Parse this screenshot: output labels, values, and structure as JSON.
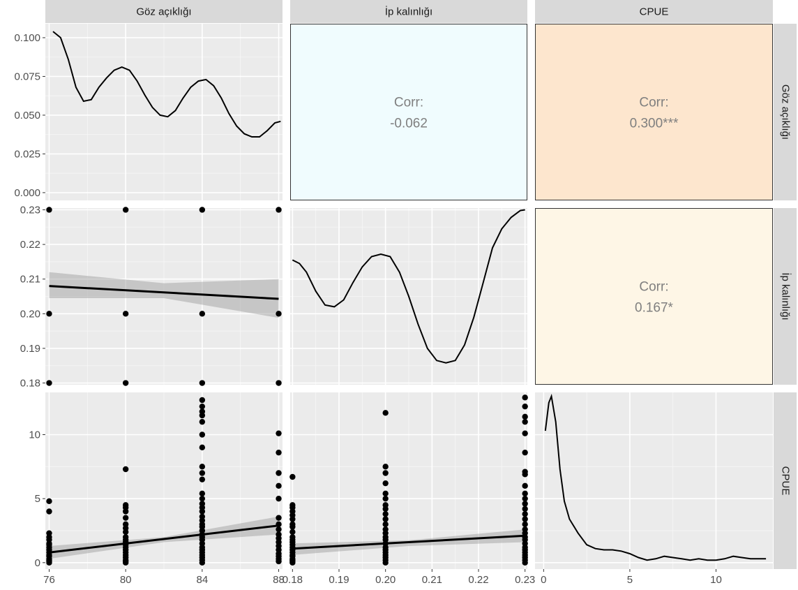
{
  "chart_data": {
    "type": "scatter",
    "variables": [
      "Göz açıklığı",
      "İp kalınlığı",
      "CPUE"
    ],
    "column_strips": [
      "Göz açıklığı",
      "İp kalınlığı",
      "CPUE"
    ],
    "row_strips": [
      "Göz açıklığı",
      "İp kalınlığı",
      "CPUE"
    ],
    "axes": {
      "goz": {
        "ticks": [
          76,
          80,
          84,
          88
        ],
        "tick_labels": [
          "76",
          "80",
          "84",
          "88"
        ],
        "range": [
          75.8,
          88.2
        ]
      },
      "ip": {
        "ticks": [
          0.18,
          0.19,
          0.2,
          0.21,
          0.22,
          0.23
        ],
        "tick_labels": [
          "0.18",
          "0.19",
          "0.20",
          "0.21",
          "0.22",
          "0.23"
        ],
        "range": [
          0.1795,
          0.2305
        ]
      },
      "cpue": {
        "ticks": [
          0,
          5,
          10
        ],
        "tick_labels": [
          "0",
          "5",
          "10"
        ],
        "range": [
          -0.5,
          13.3
        ]
      },
      "density_goz_y": {
        "ticks": [
          0,
          0.025,
          0.05,
          0.075,
          0.1
        ],
        "tick_labels": [
          "0.000",
          "0.025",
          "0.050",
          "0.075",
          "0.100"
        ],
        "range": [
          -0.005,
          0.109
        ]
      },
      "ip_y": {
        "ticks": [
          0.18,
          0.19,
          0.2,
          0.21,
          0.22,
          0.23
        ],
        "tick_labels": [
          "0.18",
          "0.19",
          "0.20",
          "0.21",
          "0.22",
          "0.23"
        ],
        "range": [
          0.1795,
          0.2305
        ]
      },
      "cpue_y": {
        "ticks": [
          0,
          5,
          10
        ],
        "tick_labels": [
          "0",
          "5",
          "10"
        ],
        "range": [
          -0.5,
          13.3
        ]
      }
    },
    "correlations": [
      {
        "row": 0,
        "col": 1,
        "label": "Corr:",
        "value": "-0.062",
        "fill": "#f0fcfe"
      },
      {
        "row": 0,
        "col": 2,
        "label": "Corr:",
        "value": "0.300***",
        "fill": "#fde6ce"
      },
      {
        "row": 1,
        "col": 2,
        "label": "Corr:",
        "value": "0.167*",
        "fill": "#fef6e6"
      }
    ],
    "density_goz": [
      [
        76.2,
        0.104
      ],
      [
        76.6,
        0.1
      ],
      [
        77,
        0.086
      ],
      [
        77.4,
        0.068
      ],
      [
        77.8,
        0.059
      ],
      [
        78.2,
        0.06
      ],
      [
        78.6,
        0.068
      ],
      [
        79,
        0.074
      ],
      [
        79.4,
        0.079
      ],
      [
        79.8,
        0.081
      ],
      [
        80.2,
        0.079
      ],
      [
        80.6,
        0.072
      ],
      [
        81,
        0.063
      ],
      [
        81.4,
        0.055
      ],
      [
        81.8,
        0.05
      ],
      [
        82.2,
        0.049
      ],
      [
        82.6,
        0.053
      ],
      [
        83,
        0.061
      ],
      [
        83.4,
        0.068
      ],
      [
        83.8,
        0.072
      ],
      [
        84.2,
        0.073
      ],
      [
        84.6,
        0.069
      ],
      [
        85,
        0.061
      ],
      [
        85.4,
        0.051
      ],
      [
        85.8,
        0.043
      ],
      [
        86.2,
        0.038
      ],
      [
        86.6,
        0.036
      ],
      [
        87,
        0.036
      ],
      [
        87.4,
        0.04
      ],
      [
        87.8,
        0.045
      ],
      [
        88.1,
        0.046
      ]
    ],
    "density_ip": [
      [
        0.18,
        0.2155
      ],
      [
        0.1815,
        0.2145
      ],
      [
        0.183,
        0.212
      ],
      [
        0.185,
        0.2065
      ],
      [
        0.187,
        0.2025
      ],
      [
        0.189,
        0.202
      ],
      [
        0.191,
        0.204
      ],
      [
        0.193,
        0.209
      ],
      [
        0.195,
        0.2135
      ],
      [
        0.197,
        0.2165
      ],
      [
        0.199,
        0.2172
      ],
      [
        0.201,
        0.2165
      ],
      [
        0.203,
        0.212
      ],
      [
        0.205,
        0.205
      ],
      [
        0.207,
        0.197
      ],
      [
        0.209,
        0.19
      ],
      [
        0.211,
        0.1865
      ],
      [
        0.213,
        0.1858
      ],
      [
        0.215,
        0.1865
      ],
      [
        0.217,
        0.191
      ],
      [
        0.219,
        0.199
      ],
      [
        0.221,
        0.209
      ],
      [
        0.223,
        0.219
      ],
      [
        0.225,
        0.2245
      ],
      [
        0.227,
        0.2278
      ],
      [
        0.229,
        0.2298
      ],
      [
        0.23,
        0.23
      ]
    ],
    "density_cpue": [
      [
        0.1,
        10.3
      ],
      [
        0.3,
        12.5
      ],
      [
        0.45,
        13
      ],
      [
        0.7,
        11
      ],
      [
        0.95,
        7.3
      ],
      [
        1.2,
        4.8
      ],
      [
        1.5,
        3.4
      ],
      [
        2,
        2.3
      ],
      [
        2.5,
        1.4
      ],
      [
        3,
        1.1
      ],
      [
        3.5,
        1
      ],
      [
        4,
        1
      ],
      [
        4.5,
        0.9
      ],
      [
        5,
        0.7
      ],
      [
        5.5,
        0.4
      ],
      [
        6,
        0.2
      ],
      [
        6.5,
        0.3
      ],
      [
        7,
        0.5
      ],
      [
        7.5,
        0.4
      ],
      [
        8,
        0.3
      ],
      [
        8.5,
        0.2
      ],
      [
        9,
        0.3
      ],
      [
        9.5,
        0.2
      ],
      [
        10,
        0.2
      ],
      [
        10.5,
        0.3
      ],
      [
        11,
        0.5
      ],
      [
        11.5,
        0.4
      ],
      [
        12,
        0.3
      ],
      [
        12.5,
        0.3
      ],
      [
        12.9,
        0.3
      ]
    ],
    "scatter_ip_vs_goz": {
      "points": [
        [
          76,
          0.23
        ],
        [
          80,
          0.23
        ],
        [
          84,
          0.23
        ],
        [
          88,
          0.23
        ],
        [
          76,
          0.2
        ],
        [
          80,
          0.2
        ],
        [
          84,
          0.2
        ],
        [
          88,
          0.2
        ],
        [
          76,
          0.18
        ],
        [
          80,
          0.18
        ],
        [
          84,
          0.18
        ],
        [
          88,
          0.18
        ]
      ],
      "fit": [
        [
          76,
          0.208
        ],
        [
          88,
          0.2043
        ]
      ],
      "band_upper": [
        [
          76,
          0.212
        ],
        [
          82,
          0.2088
        ],
        [
          88,
          0.21
        ]
      ],
      "band_lower": [
        [
          76,
          0.2045
        ],
        [
          82,
          0.2045
        ],
        [
          88,
          0.1988
        ]
      ]
    },
    "scatter_cpue_vs_goz": {
      "groups": [
        {
          "x": 76,
          "y": [
            0,
            0.1,
            0.2,
            0.3,
            0.5,
            0.6,
            0.8,
            1,
            1.2,
            1.4,
            1.5,
            1.8,
            2,
            2.3,
            4,
            4.8
          ]
        },
        {
          "x": 80,
          "y": [
            0,
            0.1,
            0.2,
            0.4,
            0.6,
            0.8,
            1,
            1.2,
            1.4,
            1.6,
            1.8,
            2,
            2.4,
            2.7,
            3,
            3.5,
            4,
            4.3,
            4.5,
            7.3
          ]
        },
        {
          "x": 84,
          "y": [
            0,
            0.2,
            0.4,
            0.6,
            0.8,
            1,
            1.2,
            1.5,
            1.8,
            2,
            2.2,
            2.5,
            2.8,
            3,
            3.3,
            3.6,
            4,
            4.3,
            4.6,
            5,
            5.4,
            6.5,
            7,
            7.5,
            9,
            10,
            11,
            11.5,
            11.8,
            12.2,
            12.7
          ]
        },
        {
          "x": 88,
          "y": [
            0.1,
            0.3,
            0.5,
            0.7,
            1,
            1.3,
            1.6,
            1.9,
            2.2,
            2.6,
            3,
            3.5,
            5,
            6,
            7,
            8.6,
            10.1
          ]
        }
      ],
      "fit": [
        [
          76,
          0.8
        ],
        [
          88,
          2.9
        ]
      ],
      "band_upper": [
        [
          76,
          1.3
        ],
        [
          82,
          2
        ],
        [
          88,
          3.6
        ]
      ],
      "band_lower": [
        [
          76,
          0.3
        ],
        [
          82,
          1.6
        ],
        [
          88,
          2.2
        ]
      ]
    },
    "scatter_cpue_vs_ip": {
      "groups": [
        {
          "x": 0.18,
          "y": [
            0,
            0.1,
            0.2,
            0.3,
            0.5,
            0.6,
            0.8,
            1,
            1.2,
            1.4,
            1.6,
            1.8,
            2,
            2.4,
            2.8,
            3,
            3.4,
            3.7,
            4,
            4.3,
            4.5,
            6.7
          ]
        },
        {
          "x": 0.2,
          "y": [
            0,
            0.2,
            0.4,
            0.6,
            0.8,
            1,
            1.2,
            1.5,
            1.8,
            2,
            2.3,
            2.6,
            3,
            3.4,
            3.8,
            4.2,
            4.5,
            5,
            5.4,
            6.2,
            7,
            7.5,
            11.7
          ]
        },
        {
          "x": 0.23,
          "y": [
            0,
            0.2,
            0.4,
            0.6,
            0.8,
            1,
            1.2,
            1.5,
            1.8,
            2,
            2.3,
            2.6,
            3,
            3.4,
            3.8,
            4.2,
            4.6,
            5,
            5.4,
            6,
            6.9,
            7.1,
            8.6,
            10.1,
            11,
            11.4,
            12.2,
            12.9
          ]
        }
      ],
      "fit": [
        [
          0.18,
          1.1
        ],
        [
          0.23,
          2.1
        ]
      ],
      "band_upper": [
        [
          0.18,
          1.5
        ],
        [
          0.205,
          1.75
        ],
        [
          0.23,
          2.6
        ]
      ],
      "band_lower": [
        [
          0.18,
          0.6
        ],
        [
          0.205,
          1.3
        ],
        [
          0.23,
          1.6
        ]
      ]
    },
    "grid": true,
    "panel_bg": "#ebebeb",
    "strip_bg": "#d9d9d9",
    "band_color": "#999999",
    "mark_color": "#000000"
  }
}
